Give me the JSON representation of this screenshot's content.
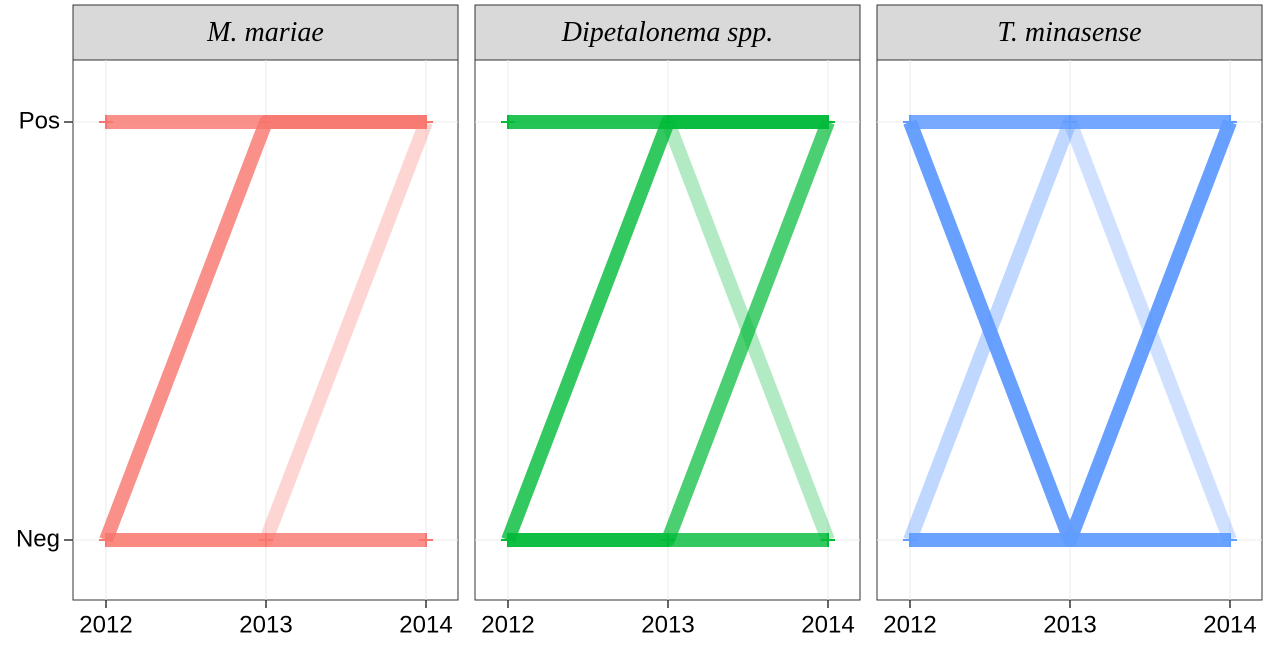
{
  "chart_data": [
    {
      "type": "line",
      "title": "M. mariae",
      "categories": [
        "2012",
        "2013",
        "2014"
      ],
      "ycategories": [
        "Neg",
        "Pos"
      ],
      "series": [
        {
          "color": "#F8766D",
          "alpha": 0.8,
          "values": [
            "Pos",
            "Pos",
            "Pos"
          ]
        },
        {
          "color": "#F8766D",
          "alpha": 0.8,
          "values": [
            "Neg",
            "Pos",
            "Pos"
          ]
        },
        {
          "color": "#F8766D",
          "alpha": 0.3,
          "values": [
            "Neg",
            "Neg",
            "Pos"
          ]
        },
        {
          "color": "#F8766D",
          "alpha": 0.8,
          "values": [
            "Neg",
            "Neg",
            "Neg"
          ]
        }
      ]
    },
    {
      "type": "line",
      "title": "Dipetalonema spp.",
      "categories": [
        "2012",
        "2013",
        "2014"
      ],
      "series": [
        {
          "color": "#00BA38",
          "alpha": 0.8,
          "values": [
            "Pos",
            "Pos",
            "Pos"
          ]
        },
        {
          "color": "#00BA38",
          "alpha": 0.8,
          "values": [
            "Neg",
            "Pos",
            "Pos"
          ]
        },
        {
          "color": "#00BA38",
          "alpha": 0.7,
          "values": [
            "Neg",
            "Neg",
            "Pos"
          ]
        },
        {
          "color": "#00BA38",
          "alpha": 0.3,
          "values": [
            "Pos",
            "Pos",
            "Neg"
          ]
        },
        {
          "color": "#00BA38",
          "alpha": 0.8,
          "values": [
            "Neg",
            "Neg",
            "Neg"
          ]
        }
      ]
    },
    {
      "type": "line",
      "title": "T. minasense",
      "categories": [
        "2012",
        "2013",
        "2014"
      ],
      "series": [
        {
          "color": "#619CFF",
          "alpha": 0.8,
          "values": [
            "Pos",
            "Pos",
            "Pos"
          ]
        },
        {
          "color": "#619CFF",
          "alpha": 0.8,
          "values": [
            "Pos",
            "Neg",
            "Pos"
          ]
        },
        {
          "color": "#619CFF",
          "alpha": 0.4,
          "values": [
            "Neg",
            "Pos",
            "Pos"
          ]
        },
        {
          "color": "#619CFF",
          "alpha": 0.8,
          "values": [
            "Pos",
            "Neg",
            "Neg"
          ]
        },
        {
          "color": "#619CFF",
          "alpha": 0.8,
          "values": [
            "Neg",
            "Neg",
            "Pos"
          ]
        },
        {
          "color": "#619CFF",
          "alpha": 0.3,
          "values": [
            "Pos",
            "Pos",
            "Neg"
          ]
        },
        {
          "color": "#619CFF",
          "alpha": 0.7,
          "values": [
            "Neg",
            "Neg",
            "Neg"
          ]
        }
      ]
    }
  ]
}
